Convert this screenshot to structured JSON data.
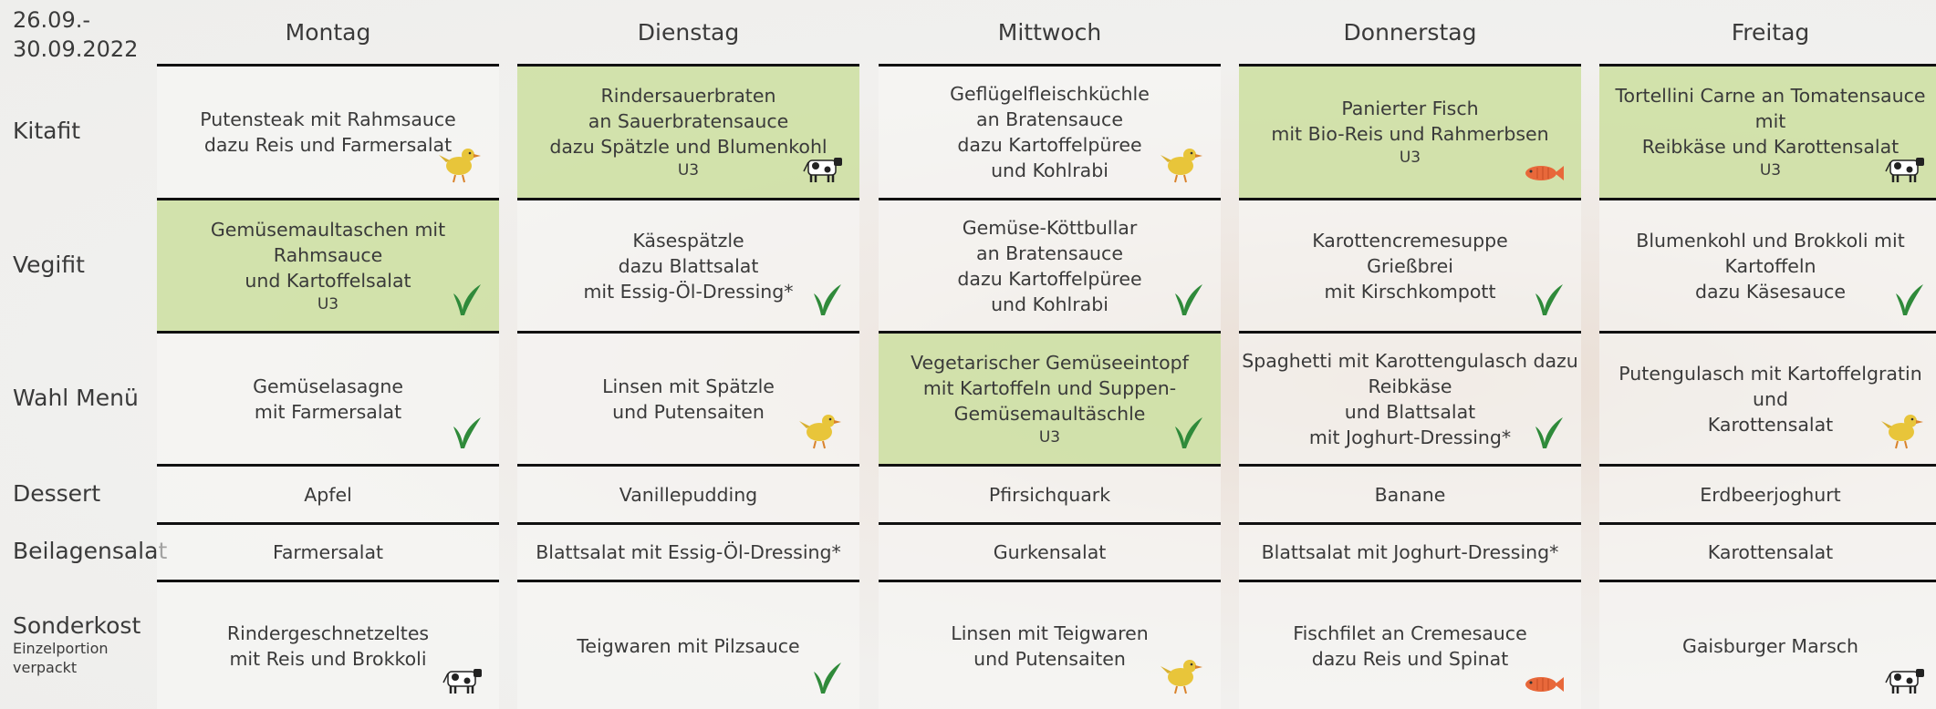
{
  "date": [
    "26.09.-",
    "30.09.2022"
  ],
  "days": [
    "Montag",
    "Dienstag",
    "Mittwoch",
    "Donnerstag",
    "Freitag"
  ],
  "rows": [
    {
      "label": "Kitafit",
      "cells": [
        {
          "lines": [
            "Putensteak mit Rahmsauce",
            "dazu Reis und Farmersalat"
          ],
          "icon": "chicken",
          "highlight": false
        },
        {
          "lines": [
            "Rindersauerbraten",
            "an Sauerbratensauce",
            "dazu Spätzle und Blumenkohl"
          ],
          "note": "U3",
          "icon": "cow",
          "highlight": true
        },
        {
          "lines": [
            "Geflügelfleischküchle",
            "an Bratensauce",
            "dazu Kartoffelpüree",
            "und Kohlrabi"
          ],
          "icon": "chicken",
          "highlight": false
        },
        {
          "lines": [
            "Panierter Fisch",
            "mit Bio-Reis und Rahmerbsen"
          ],
          "note": "U3",
          "icon": "fish",
          "highlight": true
        },
        {
          "lines": [
            "Tortellini Carne an Tomatensauce mit",
            "Reibkäse und Karottensalat"
          ],
          "note": "U3",
          "icon": "cow",
          "highlight": true
        }
      ]
    },
    {
      "label": "Vegifit",
      "cells": [
        {
          "lines": [
            "Gemüsemaultaschen mit Rahmsauce",
            "und Kartoffelsalat"
          ],
          "note": "U3",
          "icon": "leaf",
          "highlight": true
        },
        {
          "lines": [
            "Käsespätzle",
            "dazu Blattsalat",
            "mit Essig-Öl-Dressing*"
          ],
          "icon": "leaf",
          "highlight": false
        },
        {
          "lines": [
            "Gemüse-Köttbullar",
            "an Bratensauce",
            "dazu Kartoffelpüree",
            "und Kohlrabi"
          ],
          "icon": "leaf",
          "highlight": false
        },
        {
          "lines": [
            "Karottencremesuppe",
            "Grießbrei",
            "mit Kirschkompott"
          ],
          "icon": "leaf",
          "highlight": false
        },
        {
          "lines": [
            "Blumenkohl und Brokkoli mit",
            "Kartoffeln",
            "dazu Käsesauce"
          ],
          "icon": "leaf",
          "highlight": false
        }
      ]
    },
    {
      "label": "Wahl Menü",
      "cells": [
        {
          "lines": [
            "Gemüselasagne",
            "mit Farmersalat"
          ],
          "icon": "leaf",
          "highlight": false
        },
        {
          "lines": [
            "Linsen mit Spätzle",
            "und Putensaiten"
          ],
          "icon": "chicken",
          "highlight": false
        },
        {
          "lines": [
            "Vegetarischer Gemüseeintopf",
            "mit Kartoffeln und Suppen-",
            "Gemüsemaultäschle"
          ],
          "note": "U3",
          "icon": "leaf",
          "highlight": true
        },
        {
          "lines": [
            "Spaghetti mit Karottengulasch dazu",
            "Reibkäse",
            "und Blattsalat",
            "mit Joghurt-Dressing*"
          ],
          "icon": "leaf",
          "highlight": false
        },
        {
          "lines": [
            "Putengulasch mit Kartoffelgratin und",
            "Karottensalat"
          ],
          "icon": "chicken",
          "highlight": false
        }
      ]
    },
    {
      "label": "Dessert",
      "cells": [
        {
          "lines": [
            "Apfel"
          ]
        },
        {
          "lines": [
            "Vanillepudding"
          ]
        },
        {
          "lines": [
            "Pfirsichquark"
          ]
        },
        {
          "lines": [
            "Banane"
          ]
        },
        {
          "lines": [
            "Erdbeerjoghurt"
          ]
        }
      ]
    },
    {
      "label": "Beilagensalat",
      "cells": [
        {
          "lines": [
            "Farmersalat"
          ]
        },
        {
          "lines": [
            "Blattsalat mit Essig-Öl-Dressing*"
          ]
        },
        {
          "lines": [
            "Gurkensalat"
          ]
        },
        {
          "lines": [
            "Blattsalat mit Joghurt-Dressing*"
          ]
        },
        {
          "lines": [
            "Karottensalat"
          ]
        }
      ]
    },
    {
      "label": "Sonderkost",
      "sublabel": [
        "Einzelportion",
        "verpackt"
      ],
      "cells": [
        {
          "lines": [
            "Rindergeschnetzeltes",
            "mit Reis und Brokkoli"
          ],
          "icon": "cow",
          "highlight": false
        },
        {
          "lines": [
            "Teigwaren mit Pilzsauce"
          ],
          "icon": "leaf",
          "highlight": false
        },
        {
          "lines": [
            "Linsen mit Teigwaren",
            "und Putensaiten"
          ],
          "icon": "chicken",
          "highlight": false
        },
        {
          "lines": [
            "Fischfilet an Cremesauce",
            "dazu Reis und Spinat"
          ],
          "icon": "fish",
          "highlight": false
        },
        {
          "lines": [
            "Gaisburger Marsch"
          ],
          "icon": "cow",
          "highlight": false
        }
      ]
    }
  ]
}
